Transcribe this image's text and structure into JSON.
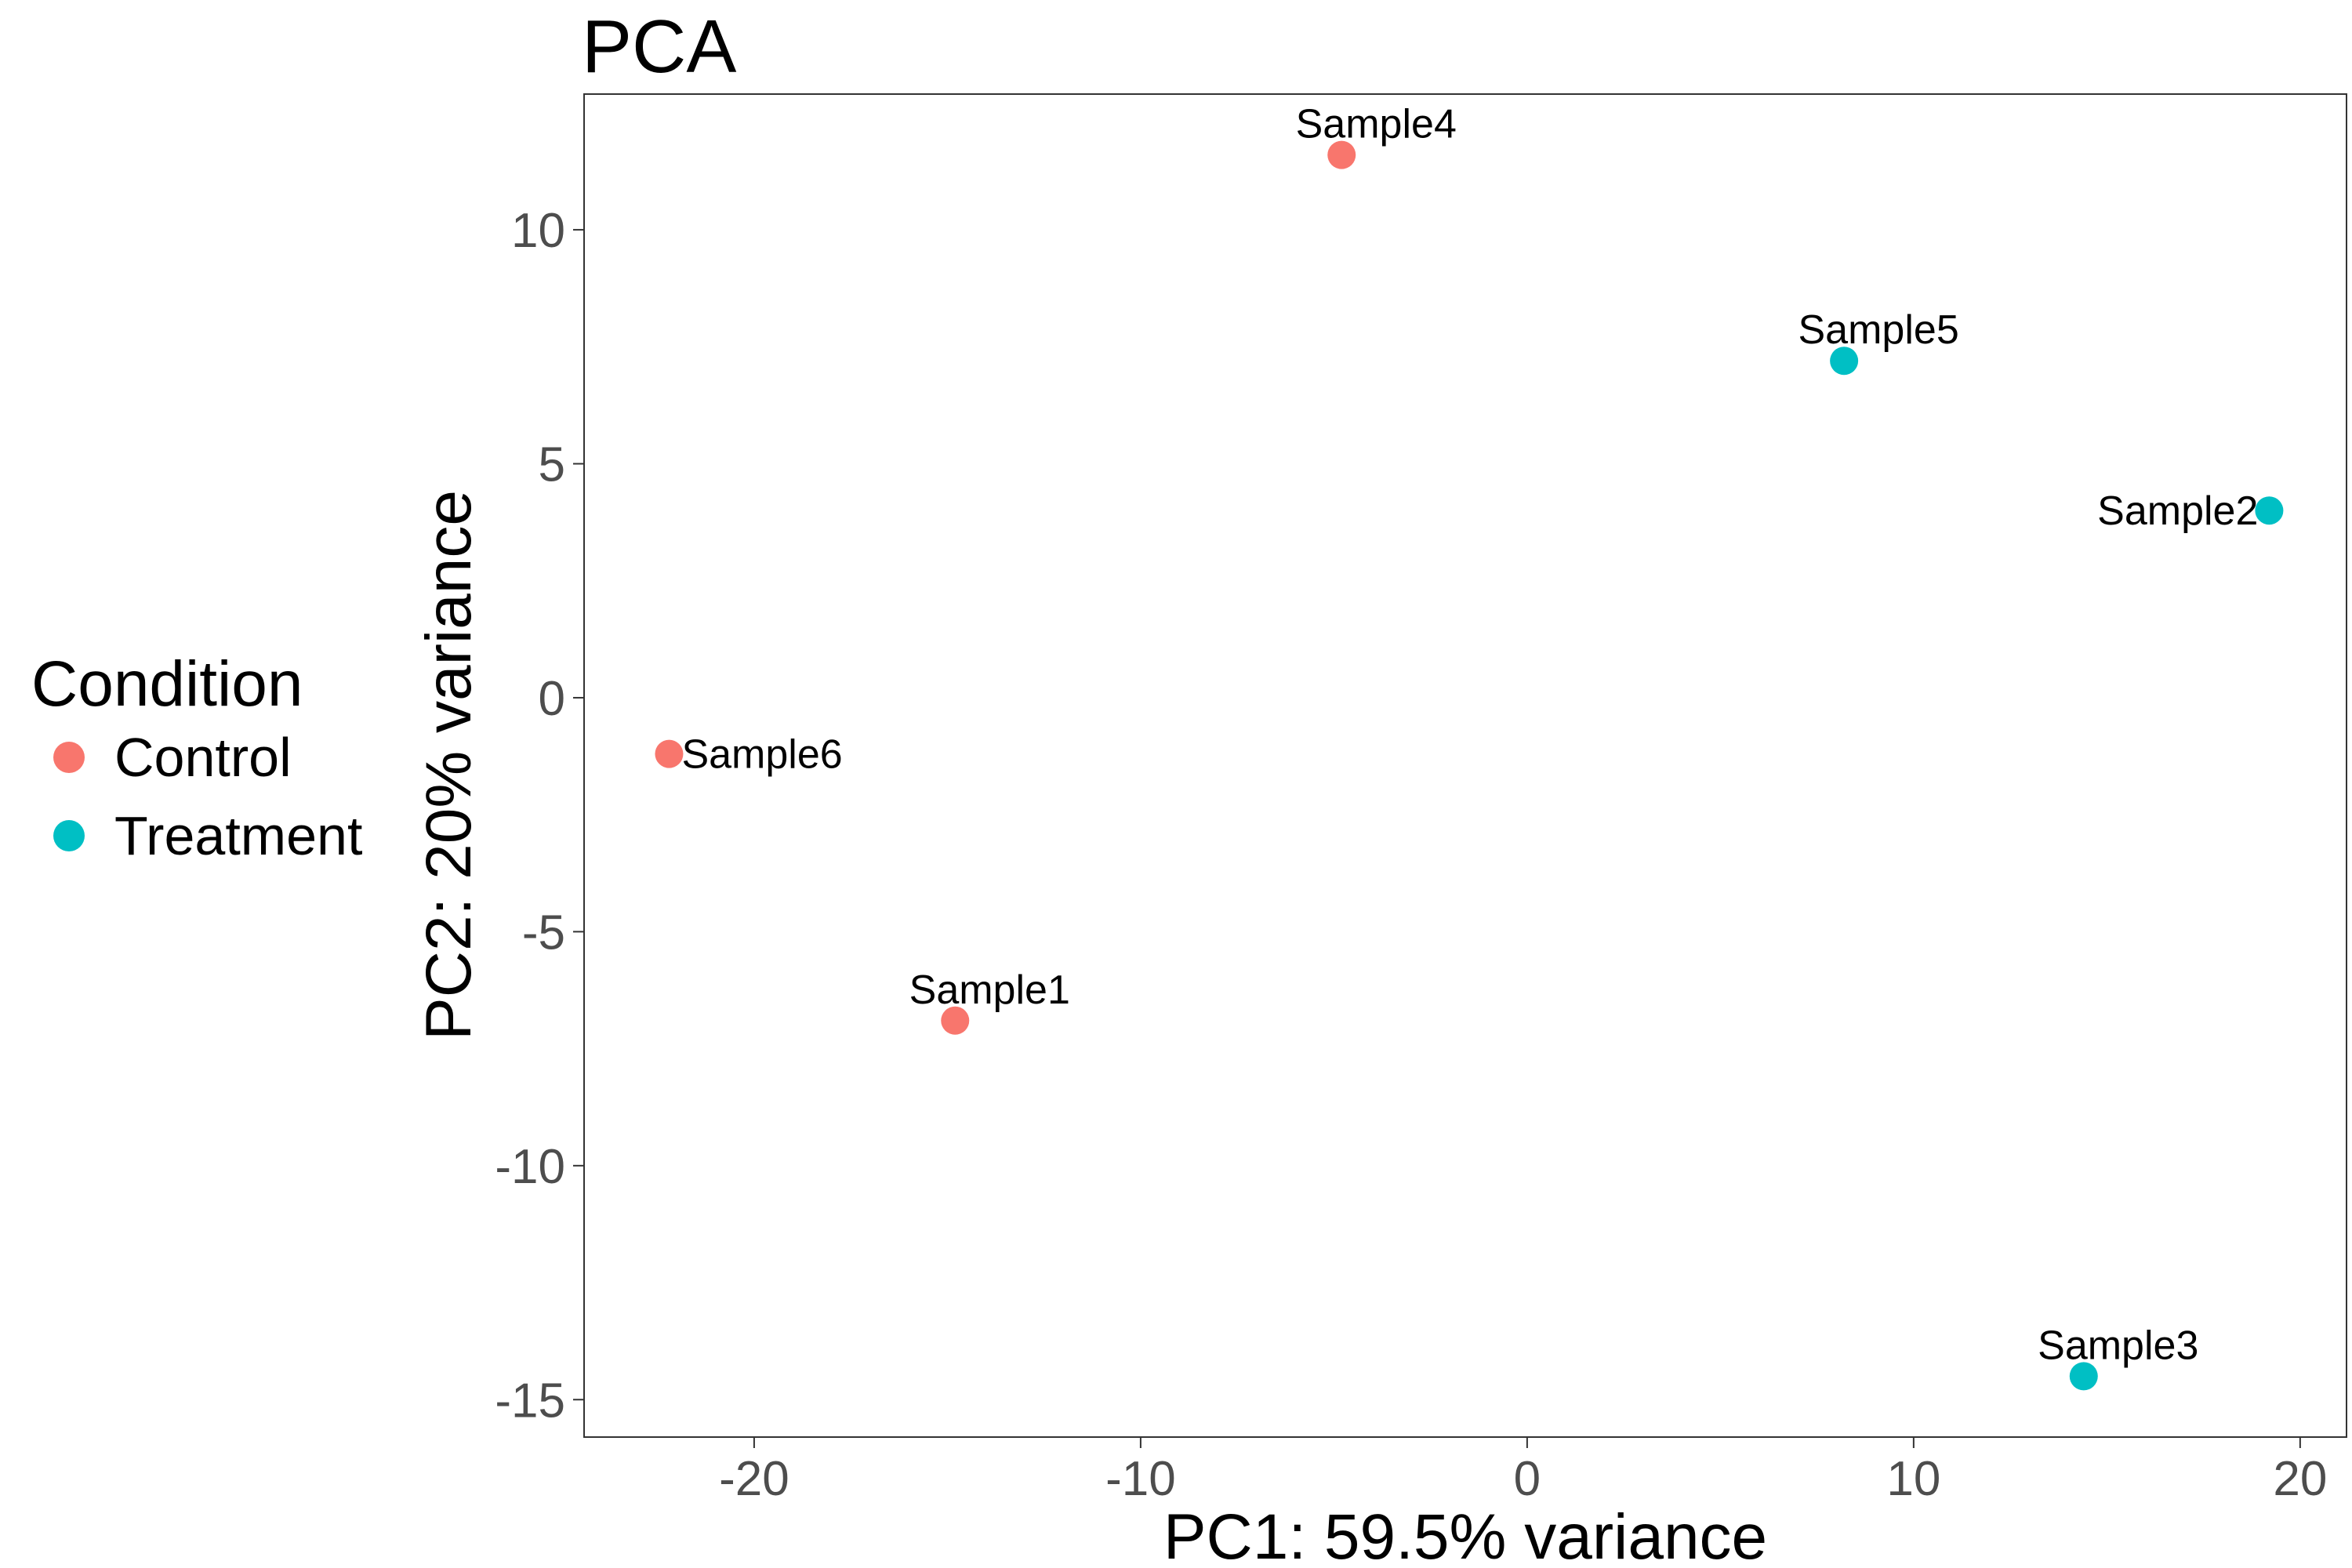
{
  "chart_data": {
    "type": "scatter",
    "title": "PCA",
    "xlabel": "PC1: 59.5% variance",
    "ylabel": "PC2: 20% variance",
    "xlim": [
      -24.4,
      21.2
    ],
    "ylim": [
      -15.8,
      12.9
    ],
    "x_ticks": [
      -20,
      -10,
      0,
      10,
      20
    ],
    "y_ticks": [
      -15,
      -10,
      -5,
      0,
      5,
      10
    ],
    "grid": false,
    "legend": {
      "title": "Condition",
      "placement": "left"
    },
    "series": [
      {
        "name": "Control",
        "color": "#F8766D",
        "points": [
          {
            "label": "Sample1",
            "x": -14.8,
            "y": -6.9
          },
          {
            "label": "Sample4",
            "x": -4.8,
            "y": 11.6
          },
          {
            "label": "Sample6",
            "x": -22.2,
            "y": -1.2
          }
        ]
      },
      {
        "name": "Treatment",
        "color": "#00BFC4",
        "points": [
          {
            "label": "Sample2",
            "x": 19.2,
            "y": 4.0
          },
          {
            "label": "Sample3",
            "x": 14.4,
            "y": -14.5
          },
          {
            "label": "Sample5",
            "x": 8.2,
            "y": 7.2
          }
        ]
      }
    ]
  }
}
